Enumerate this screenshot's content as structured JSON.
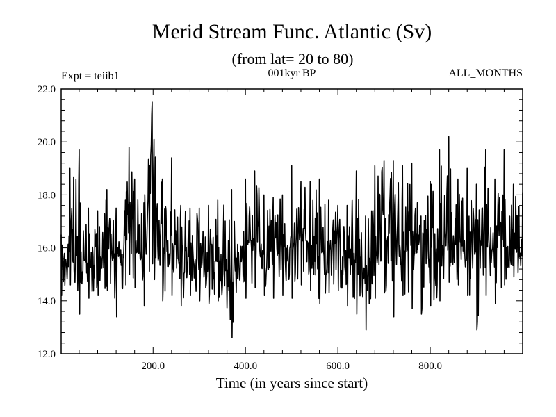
{
  "chart_data": {
    "type": "line",
    "title": "Merid Stream Func. Atlantic (Sv)",
    "subtitle": "(from lat= 20 to 80)",
    "left_label": "Expt = teiib1",
    "center_label": "001kyr BP",
    "right_label": "ALL_MONTHS",
    "xlabel": "Time (in years since start)",
    "ylabel": "",
    "xlim": [
      1,
      1000
    ],
    "ylim": [
      12.0,
      22.0
    ],
    "x_ticks": [
      {
        "value": 200,
        "label": "200.0"
      },
      {
        "value": 400,
        "label": "400.0"
      },
      {
        "value": 600,
        "label": "600.0"
      },
      {
        "value": 800,
        "label": "800.0"
      }
    ],
    "y_ticks": [
      {
        "value": 12,
        "label": "12.0"
      },
      {
        "value": 14,
        "label": "14.0"
      },
      {
        "value": 16,
        "label": "16.0"
      },
      {
        "value": 18,
        "label": "18.0"
      },
      {
        "value": 20,
        "label": "20.0"
      },
      {
        "value": 22,
        "label": "22.0"
      }
    ],
    "grid": false,
    "series": [
      {
        "x": [
          1,
          20,
          40,
          60,
          80,
          100,
          120,
          140,
          148,
          160,
          180,
          198,
          202,
          220,
          240,
          260,
          280,
          300,
          320,
          340,
          370,
          400,
          420,
          440,
          460,
          480,
          500,
          520,
          540,
          560,
          580,
          600,
          620,
          640,
          660,
          680,
          700,
          720,
          740,
          760,
          780,
          800,
          820,
          840,
          860,
          880,
          900,
          920,
          940,
          960,
          980,
          1000
        ],
        "y": [
          15.2,
          16.3,
          15.8,
          15.4,
          15.9,
          16.1,
          15.7,
          16.2,
          17.8,
          16.4,
          15.5,
          20.4,
          17.9,
          15.7,
          16.0,
          15.4,
          15.8,
          15.3,
          15.2,
          15.6,
          14.9,
          16.0,
          16.5,
          15.9,
          15.6,
          15.8,
          16.2,
          16.6,
          16.0,
          15.7,
          16.1,
          15.9,
          15.4,
          15.6,
          15.2,
          16.0,
          16.3,
          16.2,
          15.8,
          16.1,
          15.7,
          15.5,
          15.9,
          16.4,
          16.3,
          16.0,
          15.7,
          16.2,
          15.9,
          16.5,
          16.0,
          15.6
        ],
        "range_min": [
          14.2,
          14.6,
          13.5,
          14.1,
          14.2,
          14.4,
          13.4,
          14.6,
          15.0,
          14.5,
          13.8,
          15.4,
          14.8,
          14.0,
          14.2,
          13.8,
          14.2,
          14.0,
          13.9,
          14.0,
          12.6,
          14.1,
          14.5,
          14.2,
          14.1,
          14.2,
          14.1,
          14.6,
          14.4,
          13.9,
          14.3,
          14.4,
          13.8,
          13.5,
          12.9,
          14.1,
          14.3,
          13.4,
          14.2,
          13.7,
          13.5,
          13.8,
          14.0,
          14.7,
          14.6,
          14.2,
          12.9,
          14.2,
          13.9,
          14.6,
          14.9,
          14.9
        ],
        "range_max": [
          16.5,
          19.0,
          19.7,
          17.5,
          17.4,
          18.2,
          17.5,
          17.8,
          19.8,
          18.6,
          17.7,
          21.5,
          20.1,
          18.6,
          19.4,
          17.6,
          17.5,
          17.5,
          17.6,
          17.8,
          18.2,
          18.6,
          18.9,
          18.0,
          17.9,
          18.0,
          19.1,
          18.5,
          18.5,
          18.6,
          17.8,
          17.6,
          17.6,
          18.9,
          17.2,
          19.1,
          19.3,
          19.3,
          19.1,
          19.2,
          17.2,
          18.5,
          19.7,
          20.2,
          18.6,
          19.0,
          18.4,
          19.7,
          18.6,
          19.7,
          18.4,
          18.1
        ]
      }
    ]
  }
}
